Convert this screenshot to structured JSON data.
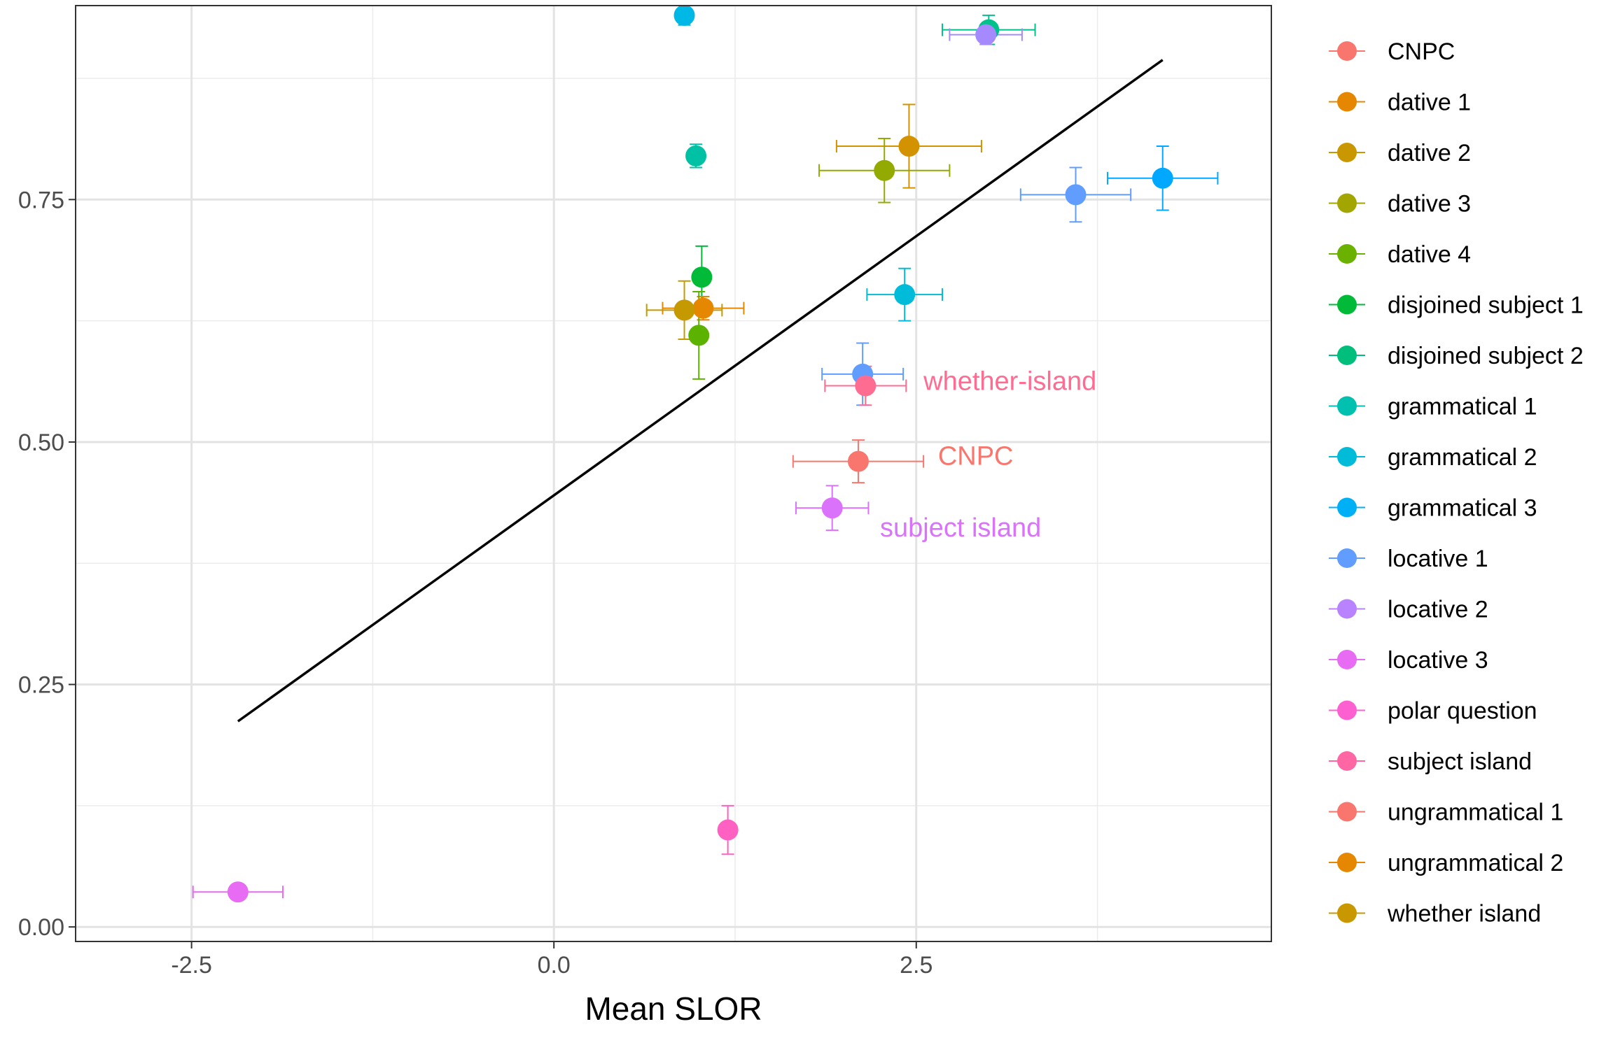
{
  "chart_data": {
    "type": "scatter",
    "title": "",
    "xlabel": "Mean SLOR",
    "ylabel": "",
    "xlim": [
      -3.3,
      4.95
    ],
    "ylim": [
      -0.015,
      0.95
    ],
    "x_ticks": [
      {
        "value": -2.5,
        "label": "-2.5"
      },
      {
        "value": 0.0,
        "label": "0.0"
      },
      {
        "value": 2.5,
        "label": "2.5"
      }
    ],
    "y_ticks": [
      {
        "value": 0.0,
        "label": "0.00"
      },
      {
        "value": 0.25,
        "label": "0.25"
      },
      {
        "value": 0.5,
        "label": "0.50"
      },
      {
        "value": 0.75,
        "label": "0.75"
      }
    ],
    "grid": true,
    "legend_position": "right",
    "legend": [
      {
        "label": "CNPC",
        "color": "#F8766D"
      },
      {
        "label": "dative 1",
        "color": "#E58700"
      },
      {
        "label": "dative 2",
        "color": "#C99800"
      },
      {
        "label": "dative 3",
        "color": "#A3A500"
      },
      {
        "label": "dative 4",
        "color": "#6BB100"
      },
      {
        "label": "disjoined subject 1",
        "color": "#00BA38"
      },
      {
        "label": "disjoined subject 2",
        "color": "#00BF7D"
      },
      {
        "label": "grammatical 1",
        "color": "#00C0AF"
      },
      {
        "label": "grammatical 2",
        "color": "#00BCD8"
      },
      {
        "label": "grammatical 3",
        "color": "#00B0F6"
      },
      {
        "label": "locative 1",
        "color": "#619CFF"
      },
      {
        "label": "locative 2",
        "color": "#B983FF"
      },
      {
        "label": "locative 3",
        "color": "#E76BF3"
      },
      {
        "label": "polar question",
        "color": "#FD61D1"
      },
      {
        "label": "subject island",
        "color": "#FF67A4"
      },
      {
        "label": "ungrammatical 1",
        "color": "#F8766D"
      },
      {
        "label": "ungrammatical 2",
        "color": "#E58700"
      },
      {
        "label": "whether island",
        "color": "#C99800"
      }
    ],
    "points": [
      {
        "color": "#00B8E5",
        "x": 0.9,
        "y": 0.94,
        "xerr": 0.05,
        "yerr": 0.01
      },
      {
        "color": "#00C08B",
        "x": 3.0,
        "y": 0.925,
        "xerr": 0.32,
        "yerr": 0.015
      },
      {
        "color": "#A58AFF",
        "x": 2.98,
        "y": 0.92,
        "xerr": 0.25,
        "yerr": 0.01
      },
      {
        "color": "#00C1A3",
        "x": 0.98,
        "y": 0.795,
        "xerr": 0.05,
        "yerr": 0.012
      },
      {
        "color": "#D39200",
        "x": 2.45,
        "y": 0.805,
        "xerr": 0.5,
        "yerr": 0.043
      },
      {
        "color": "#93AA00",
        "x": 2.28,
        "y": 0.78,
        "xerr": 0.45,
        "yerr": 0.033
      },
      {
        "color": "#619CFF",
        "x": 3.6,
        "y": 0.755,
        "xerr": 0.38,
        "yerr": 0.028
      },
      {
        "color": "#00A9FF",
        "x": 4.2,
        "y": 0.772,
        "xerr": 0.38,
        "yerr": 0.033
      },
      {
        "color": "#00BA38",
        "x": 1.02,
        "y": 0.67,
        "xerr": 0.03,
        "yerr": 0.032
      },
      {
        "color": "#E58700",
        "x": 1.03,
        "y": 0.638,
        "xerr": 0.28,
        "yerr": 0.012
      },
      {
        "color": "#C49A00",
        "x": 0.9,
        "y": 0.636,
        "xerr": 0.26,
        "yerr": 0.03
      },
      {
        "color": "#5BB300",
        "x": 1.0,
        "y": 0.61,
        "xerr": 0.03,
        "yerr": 0.045
      },
      {
        "color": "#00BCD8",
        "x": 2.42,
        "y": 0.652,
        "xerr": 0.26,
        "yerr": 0.027
      },
      {
        "color": "#619CFF",
        "x": 2.13,
        "y": 0.57,
        "xerr": 0.28,
        "yerr": 0.032
      },
      {
        "color": "#FF6C91",
        "x": 2.15,
        "y": 0.558,
        "xerr": 0.28,
        "yerr": 0.02
      },
      {
        "color": "#F8766D",
        "x": 2.1,
        "y": 0.48,
        "xerr": 0.45,
        "yerr": 0.022
      },
      {
        "color": "#DB72FB",
        "x": 1.92,
        "y": 0.432,
        "xerr": 0.25,
        "yerr": 0.023
      },
      {
        "color": "#FF61C3",
        "x": 1.2,
        "y": 0.1,
        "xerr": 0.0,
        "yerr": 0.025
      },
      {
        "color": "#E76BF3",
        "x": -2.18,
        "y": 0.036,
        "xerr": 0.31,
        "yerr": 0.0
      }
    ],
    "fit_line": {
      "x": [
        -2.18,
        4.2
      ],
      "y": [
        0.212,
        0.894
      ],
      "color": "#000000"
    },
    "annotations": [
      {
        "text": "whether-island",
        "x": 2.55,
        "y": 0.563,
        "color": "#FF6C91"
      },
      {
        "text": "CNPC",
        "x": 2.65,
        "y": 0.486,
        "color": "#F8766D"
      },
      {
        "text": "subject island",
        "x": 2.25,
        "y": 0.412,
        "color": "#DB72FB"
      }
    ]
  }
}
